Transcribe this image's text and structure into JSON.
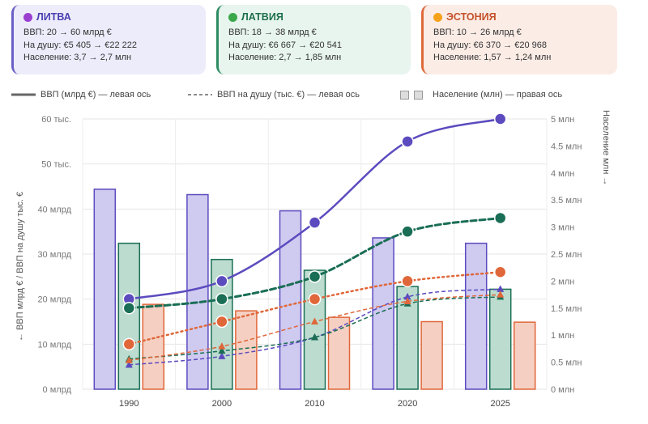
{
  "cards": [
    {
      "title": "ЛИТВА",
      "dot_color": "#9b3fd0",
      "bg": "#ececfb",
      "border": "#6a5fc7",
      "title_color": "#4b3fb0",
      "lines": [
        "ВВП: 20 → 60 млрд €",
        "На душу: €5 405 → €22 222",
        "Население: 3,7 → 2,7 млн"
      ]
    },
    {
      "title": "ЛАТВИЯ",
      "dot_color": "#3aa84a",
      "bg": "#e7f5ee",
      "border": "#2e8c62",
      "title_color": "#1f6f4c",
      "lines": [
        "ВВП: 18 → 38 млрд €",
        "На душу: €6 667 → €20 541",
        "Население: 2,7 → 1,85 млн"
      ]
    },
    {
      "title": "ЭСТОНИЯ",
      "dot_color": "#f5a21a",
      "bg": "#fbece6",
      "border": "#e06a3c",
      "title_color": "#c4522a",
      "lines": [
        "ВВП: 10 → 26 млрд €",
        "На душу: €6 370 → €20 968",
        "Население: 1,57 → 1,24 млн"
      ]
    }
  ],
  "legend": {
    "gdp": "ВВП (млрд €) — левая ось",
    "per_capita": "ВВП на душу (тыс. €) — левая ось",
    "population": "Население (млн) — правая ось"
  },
  "chart_data": {
    "type": "bar",
    "categories": [
      "1990",
      "2000",
      "2010",
      "2020",
      "2025"
    ],
    "left_axis": {
      "label": "← ВВП млрд € / ВВП на душу тыс. €",
      "ylim": [
        0,
        60
      ],
      "ticks": [
        0,
        10,
        20,
        30,
        40,
        50,
        60
      ],
      "tick_labels": [
        "0 млрд",
        "10 млрд",
        "20 млрд",
        "30 млрд",
        "40 млрд",
        "50 тыс.",
        "60 тыс."
      ]
    },
    "right_axis": {
      "label": "Население млн →",
      "ylim": [
        0,
        5
      ],
      "ticks": [
        0,
        0.5,
        1,
        1.5,
        2,
        2.5,
        3,
        3.5,
        4,
        4.5,
        5
      ],
      "tick_labels": [
        "0 млн",
        "0.5 млн",
        "1 млн",
        "1.5 млн",
        "2 млн",
        "2.5 млн",
        "3 млн",
        "3.5 млн",
        "4 млн",
        "4.5 млн",
        "5 млн"
      ]
    },
    "countries": [
      {
        "name": "ЛИТВА",
        "color": "#5b4bbf",
        "bar_fill": "#cfcaf0",
        "population": [
          3.7,
          3.6,
          3.3,
          2.8,
          2.7
        ],
        "gdp": [
          20,
          24,
          37,
          55,
          60
        ],
        "per_capita": [
          5.4,
          7.3,
          11.5,
          20.5,
          22.2
        ]
      },
      {
        "name": "ЛАТВИЯ",
        "color": "#1a6e55",
        "bar_fill": "#bcdccf",
        "population": [
          2.7,
          2.4,
          2.2,
          1.9,
          1.85
        ],
        "gdp": [
          18,
          20,
          25,
          35,
          38
        ],
        "per_capita": [
          6.7,
          8.5,
          11.5,
          19,
          20.5
        ]
      },
      {
        "name": "ЭСТОНИЯ",
        "color": "#e0673a",
        "bar_fill": "#f5d0c2",
        "population": [
          1.57,
          1.45,
          1.33,
          1.25,
          1.24
        ],
        "gdp": [
          10,
          15,
          20,
          24,
          26
        ],
        "per_capita": [
          6.4,
          9.5,
          15,
          19.5,
          21
        ]
      }
    ],
    "grid": true
  }
}
